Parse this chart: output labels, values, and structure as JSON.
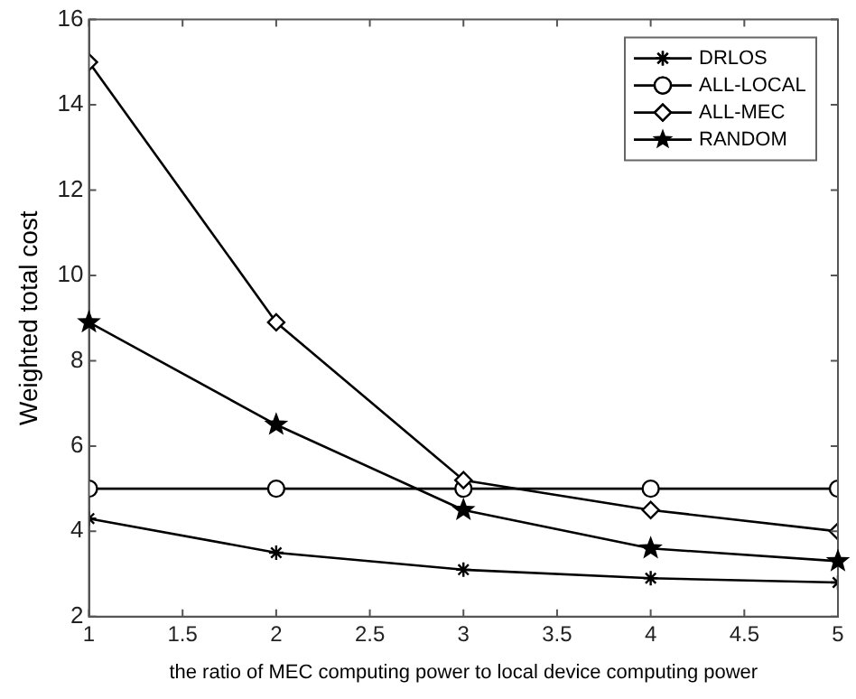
{
  "chart_data": {
    "type": "line",
    "xlabel": "the ratio of MEC computing power to local device computing power",
    "ylabel": "Weighted total cost",
    "x": [
      1,
      2,
      3,
      4,
      5
    ],
    "xlim": [
      1,
      5
    ],
    "xticks": [
      1,
      1.5,
      2,
      2.5,
      3,
      3.5,
      4,
      4.5,
      5
    ],
    "ylim": [
      2,
      16
    ],
    "yticks": [
      2,
      4,
      6,
      8,
      10,
      12,
      14,
      16
    ],
    "grid": false,
    "legend": "top right",
    "line_style": "solid",
    "series": [
      {
        "name": "DRLOS",
        "color": "#000000",
        "marker": "cross",
        "values": [
          4.3,
          3.5,
          3.1,
          2.9,
          2.8
        ]
      },
      {
        "name": "ALL-LOCAL",
        "color": "#000000",
        "marker": "circle",
        "values": [
          5,
          5,
          5,
          5,
          5
        ]
      },
      {
        "name": "ALL-MEC",
        "color": "#000000",
        "marker": "diamond",
        "values": [
          15,
          8.9,
          5.2,
          4.5,
          4.0
        ]
      },
      {
        "name": "RANDOM",
        "color": "#000000",
        "marker": "star",
        "values": [
          8.9,
          6.5,
          4.5,
          3.6,
          3.3
        ]
      }
    ]
  }
}
